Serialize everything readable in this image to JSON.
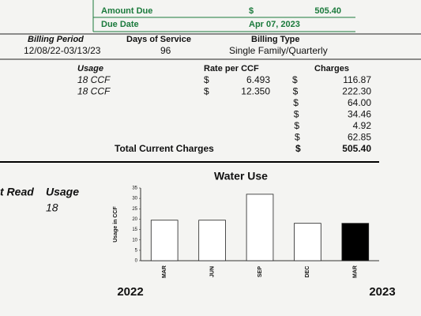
{
  "amount_due": {
    "label": "Amount Due",
    "symbol": "$",
    "value": "505.40",
    "due_label": "Due Date",
    "due_value": "Apr 07, 2023"
  },
  "billing": {
    "headers": [
      "Billing Period",
      "Days of Service",
      "Billing Type"
    ],
    "values": [
      "12/08/22-03/13/23",
      "96",
      "Single Family/Quarterly"
    ]
  },
  "charges": {
    "headers": [
      "Usage",
      "Rate per CCF",
      "Charges"
    ],
    "rows": [
      {
        "usage": "18 CCF",
        "rate_symbol": "$",
        "rate": "6.493",
        "charge_symbol": "$",
        "charge": "116.87"
      },
      {
        "usage": "18 CCF",
        "rate_symbol": "$",
        "rate": "12.350",
        "charge_symbol": "$",
        "charge": "222.30"
      },
      {
        "charge_symbol": "$",
        "charge": "64.00"
      },
      {
        "charge_symbol": "$",
        "charge": "34.46"
      },
      {
        "charge_symbol": "$",
        "charge": "4.92"
      },
      {
        "charge_symbol": "$",
        "charge": "62.85"
      }
    ],
    "total_label": "Total Current Charges",
    "total_symbol": "$",
    "total": "505.40"
  },
  "usage_read": {
    "read_label": "t Read",
    "usage_label": "Usage",
    "usage_value": "18"
  },
  "chart_years": [
    "2022",
    "2023"
  ],
  "chart_data": {
    "type": "bar",
    "title": "Water Use",
    "y_label": "Usage in CCF",
    "categories": [
      "MAR",
      "JUN",
      "SEP",
      "DEC",
      "MAR"
    ],
    "values": [
      19.5,
      19.5,
      32,
      18,
      18
    ],
    "colors": [
      "#ffffff",
      "#ffffff",
      "#ffffff",
      "#ffffff",
      "#000000"
    ],
    "ylim": [
      0,
      35
    ],
    "yticks": [
      0,
      5,
      10,
      15,
      20,
      25,
      30,
      35
    ]
  }
}
